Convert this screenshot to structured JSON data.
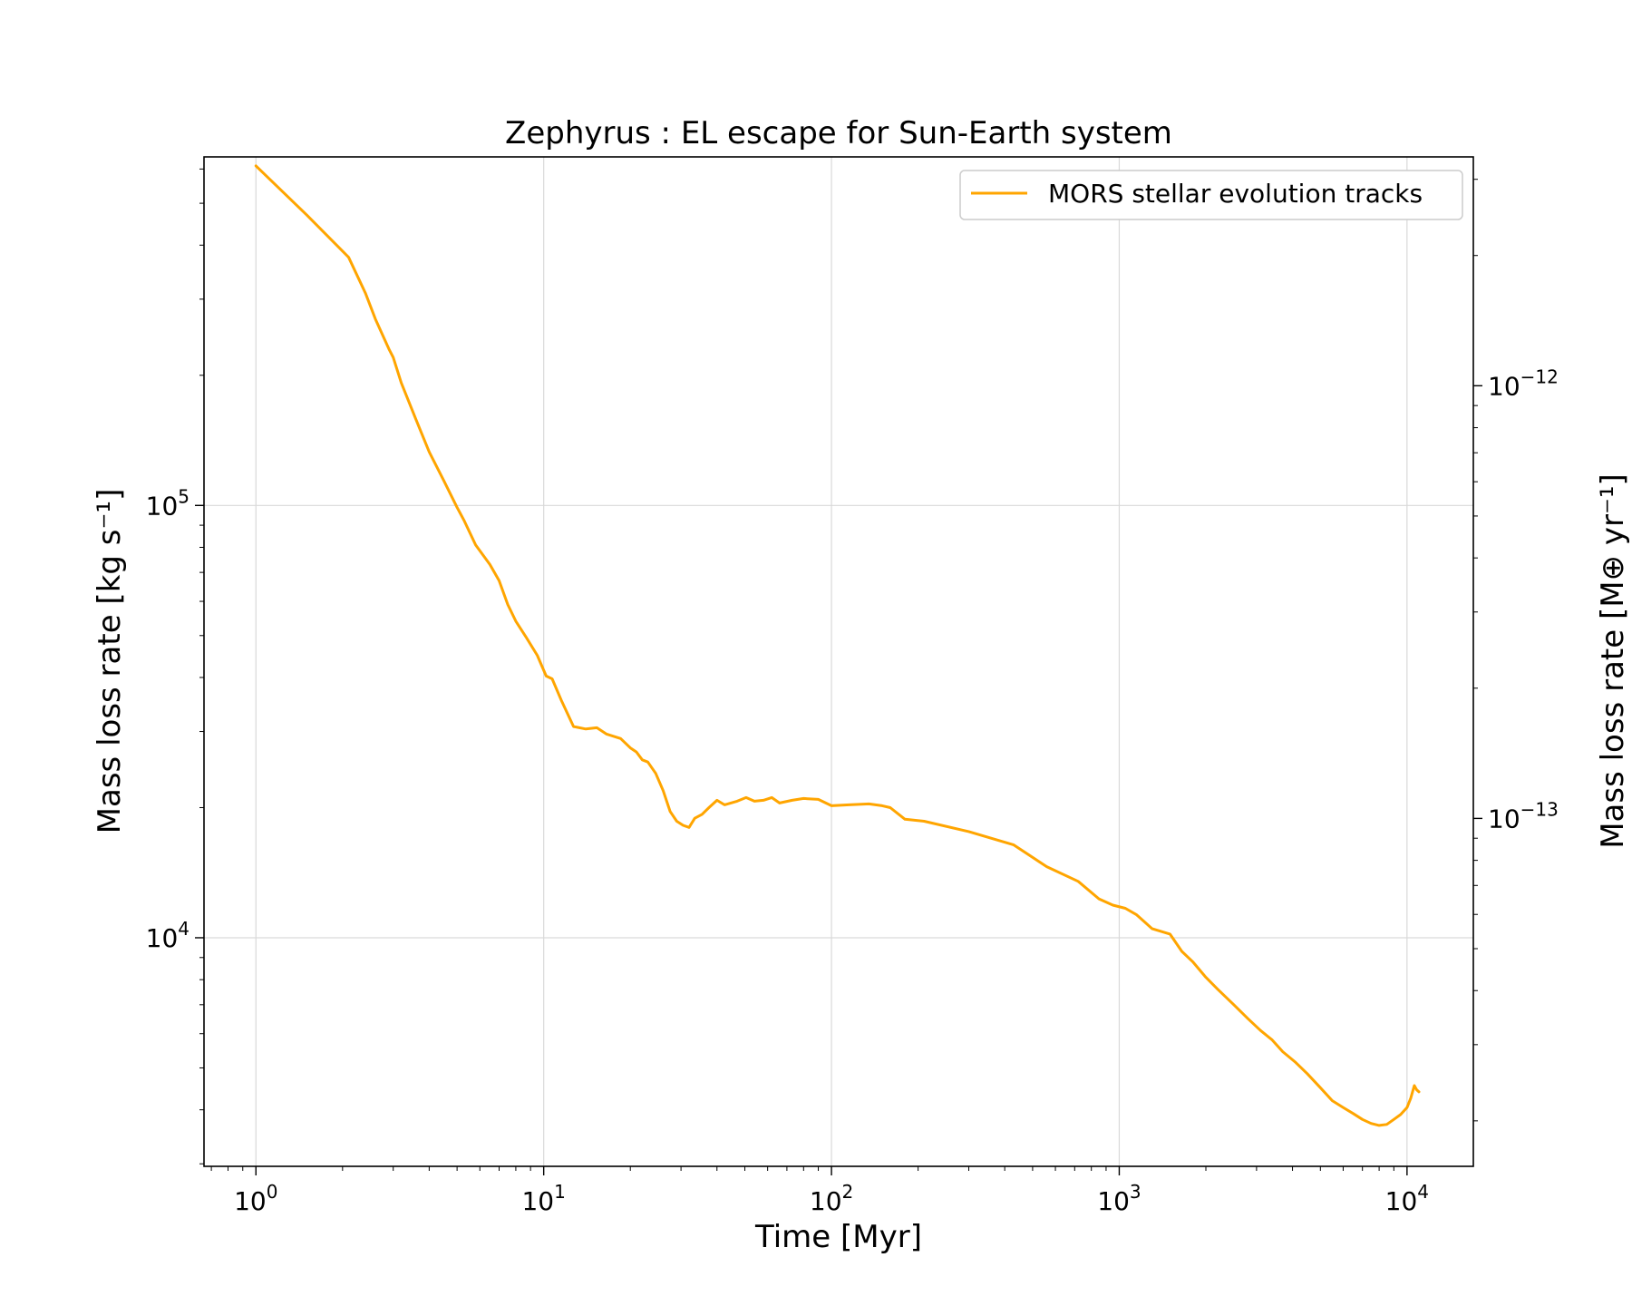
{
  "chart_data": {
    "type": "line",
    "title": "Zephyrus : EL escape for Sun-Earth system",
    "xlabel": "Time [Myr]",
    "ylabel_left": "Mass loss rate [kg s⁻¹]",
    "ylabel_right": "Mass loss rate [M⊕ yr⁻¹]",
    "x_scale": "log",
    "y_scale": "log",
    "xlim": [
      0.66,
      17000
    ],
    "ylim_left": [
      2960,
      640000
    ],
    "ylim_right": [
      1.57e-14,
      3.38e-12
    ],
    "grid": true,
    "legend_position": "top-right",
    "x_ticks": [
      {
        "value": 1,
        "base": "10",
        "exp": "0"
      },
      {
        "value": 10,
        "base": "10",
        "exp": "1"
      },
      {
        "value": 100,
        "base": "10",
        "exp": "2"
      },
      {
        "value": 1000,
        "base": "10",
        "exp": "3"
      },
      {
        "value": 10000,
        "base": "10",
        "exp": "4"
      }
    ],
    "y_left_ticks": [
      {
        "value": 10000,
        "base": "10",
        "exp": "4"
      },
      {
        "value": 100000,
        "base": "10",
        "exp": "5"
      }
    ],
    "y_right_ticks": [
      {
        "value": 1e-13,
        "base": "10",
        "exp": "−13"
      },
      {
        "value": 1e-12,
        "base": "10",
        "exp": "−12"
      }
    ],
    "series": [
      {
        "name": "MORS stellar evolution tracks",
        "color": "#FFA500",
        "x": [
          1.0,
          1.5,
          2.1,
          2.4,
          2.6,
          2.9,
          3.0,
          3.2,
          3.6,
          4.0,
          4.5,
          5.0,
          5.3,
          5.8,
          6.5,
          7.0,
          7.5,
          8.0,
          8.7,
          9.5,
          10.2,
          10.7,
          11.5,
          12.7,
          14.0,
          15.3,
          16.5,
          18.5,
          20.0,
          21.0,
          22.0,
          23.0,
          24.5,
          26.0,
          27.5,
          29.0,
          30.5,
          32.0,
          33.5,
          35.5,
          37.5,
          40.0,
          42.5,
          47.0,
          50.5,
          54.0,
          58.0,
          62.0,
          66.0,
          73.0,
          80.0,
          90.0,
          100.0,
          115.0,
          135.0,
          150.0,
          160.0,
          180.0,
          210.0,
          300.0,
          430.0,
          560.0,
          720.0,
          850.0,
          950.0,
          1050.0,
          1150.0,
          1300.0,
          1500.0,
          1650.0,
          1800.0,
          2000.0,
          2200.0,
          2500.0,
          2800.0,
          3100.0,
          3400.0,
          3700.0,
          4100.0,
          4500.0,
          5000.0,
          5500.0,
          6000.0,
          6500.0,
          7000.0,
          7500.0,
          8000.0,
          8500.0,
          9000.0,
          9500.0,
          10000.0,
          10300.0,
          10600.0,
          10800.0,
          11000.0
        ],
        "y": [
          610000,
          470000,
          375000,
          310000,
          270000,
          230000,
          220000,
          192000,
          158000,
          133000,
          114000,
          99000,
          92000,
          81000,
          73000,
          67000,
          59000,
          54000,
          49500,
          45000,
          40300,
          39700,
          35500,
          30800,
          30400,
          30600,
          29600,
          28900,
          27500,
          26900,
          25800,
          25500,
          24000,
          21900,
          19600,
          18600,
          18200,
          18000,
          18900,
          19300,
          20000,
          20800,
          20300,
          20700,
          21100,
          20700,
          20800,
          21100,
          20500,
          20800,
          21000,
          20900,
          20200,
          20300,
          20400,
          20200,
          20000,
          18800,
          18600,
          17600,
          16400,
          14600,
          13500,
          12300,
          11900,
          11700,
          11300,
          10500,
          10200,
          9300,
          8800,
          8100,
          7600,
          7000,
          6500,
          6100,
          5800,
          5450,
          5150,
          4850,
          4500,
          4200,
          4050,
          3920,
          3800,
          3720,
          3680,
          3700,
          3800,
          3900,
          4050,
          4250,
          4550,
          4450,
          4400
        ]
      }
    ]
  }
}
